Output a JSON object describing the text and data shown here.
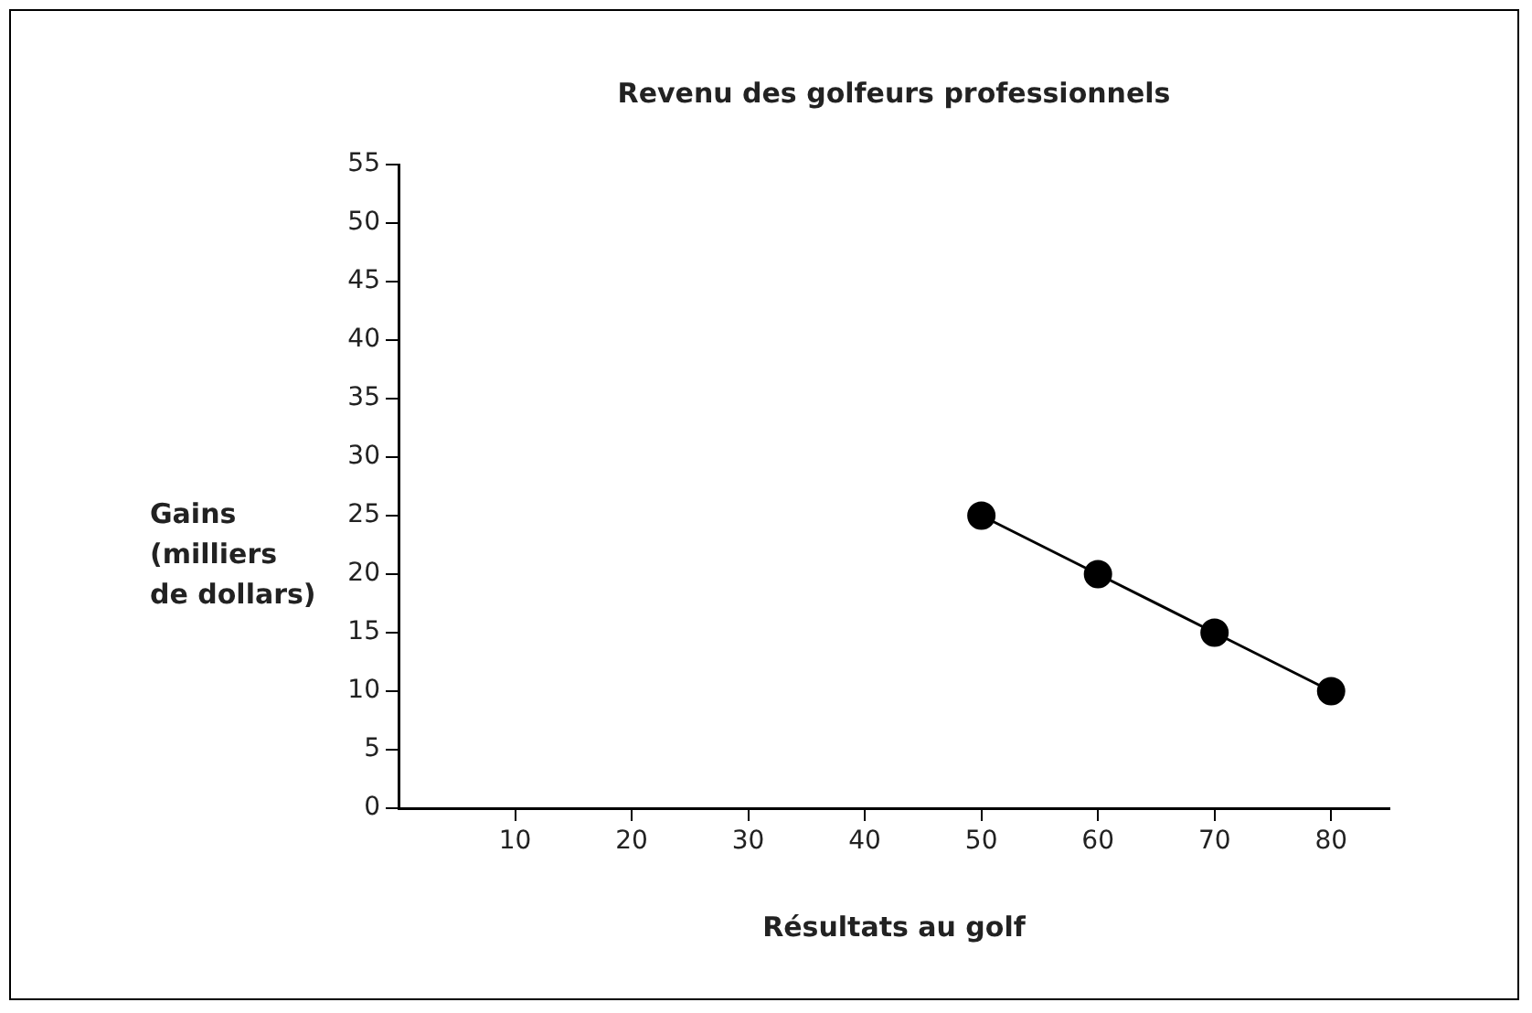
{
  "chart_data": {
    "type": "line",
    "title": "Revenu des golfeurs professionnels",
    "xlabel": "Résultats au golf",
    "ylabel": "Gains\n(milliers\nde dollars)",
    "x": [
      50,
      60,
      70,
      80
    ],
    "series": [
      {
        "color": "#000000",
        "values": [
          25,
          20,
          15,
          10
        ]
      }
    ],
    "xlim": [
      0,
      85
    ],
    "xticks": [
      10,
      20,
      30,
      40,
      50,
      60,
      70,
      80
    ],
    "ylim": [
      0,
      55
    ],
    "yticks": [
      0,
      5,
      10,
      15,
      20,
      25,
      30,
      35,
      40,
      45,
      50,
      55
    ],
    "grid": false,
    "marker": "circle"
  }
}
